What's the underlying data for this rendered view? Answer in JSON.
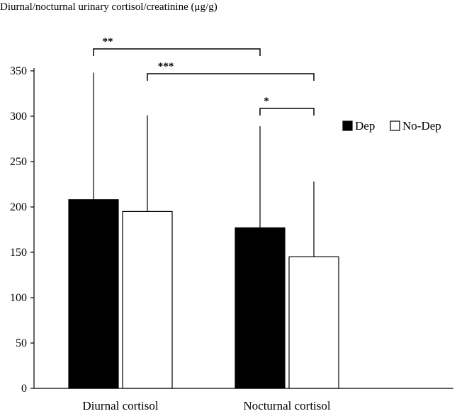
{
  "chart_data": {
    "type": "bar",
    "title": "Diurnal/nocturnal urinary cortisol/creatinine (μg/g)",
    "xlabel": "",
    "ylabel": "",
    "categories": [
      "Diurnal cortisol",
      "Nocturnal cortisol"
    ],
    "series": [
      {
        "name": "Dep",
        "color": "#000000",
        "values": [
          208,
          177
        ],
        "error_upper": [
          348,
          289
        ]
      },
      {
        "name": "No-Dep",
        "color": "#ffffff",
        "values": [
          195,
          145
        ],
        "error_upper": [
          301,
          228
        ]
      }
    ],
    "ylim": [
      0,
      350
    ],
    "yticks": [
      "0",
      "50",
      "100",
      "150",
      "200",
      "250",
      "300",
      "350"
    ],
    "yticks_values": [
      0,
      50,
      100,
      150,
      200,
      250,
      300,
      350
    ],
    "grid": false,
    "legend_position": "right",
    "significance": [
      {
        "from": "Dep · Diurnal cortisol",
        "to": "Dep · Nocturnal cortisol",
        "label": "**"
      },
      {
        "from": "No-Dep · Diurnal cortisol",
        "to": "No-Dep · Nocturnal cortisol",
        "label": "***"
      },
      {
        "from": "Dep · Nocturnal cortisol",
        "to": "No-Dep · Nocturnal cortisol",
        "label": "*"
      }
    ]
  }
}
